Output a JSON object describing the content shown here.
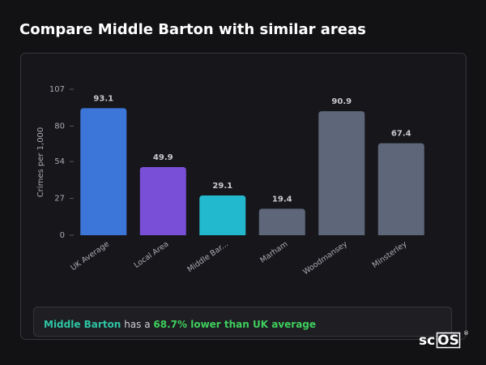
{
  "page_title": "Compare Middle Barton with similar areas",
  "chart_data": {
    "type": "bar",
    "y_label": "Crimes per 1,000",
    "categories": [
      "UK Average",
      "Local Area",
      "Middle Bar...",
      "Marham",
      "Woodmansey",
      "Minsterley"
    ],
    "values": [
      93.1,
      49.9,
      29.1,
      19.4,
      90.9,
      67.4
    ],
    "colors": [
      "#3b76d8",
      "#7a4fd8",
      "#22b9cf",
      "#5d6779",
      "#5d6779",
      "#5d6779"
    ],
    "ylim": [
      0,
      107
    ],
    "yticks": [
      0,
      27,
      54,
      80,
      107
    ]
  },
  "summary": {
    "area": "Middle Barton",
    "connector": "has a",
    "comparison": "68.7% lower than UK average"
  },
  "logo": {
    "left": "sc",
    "boxed": "OS",
    "mark": "®"
  }
}
